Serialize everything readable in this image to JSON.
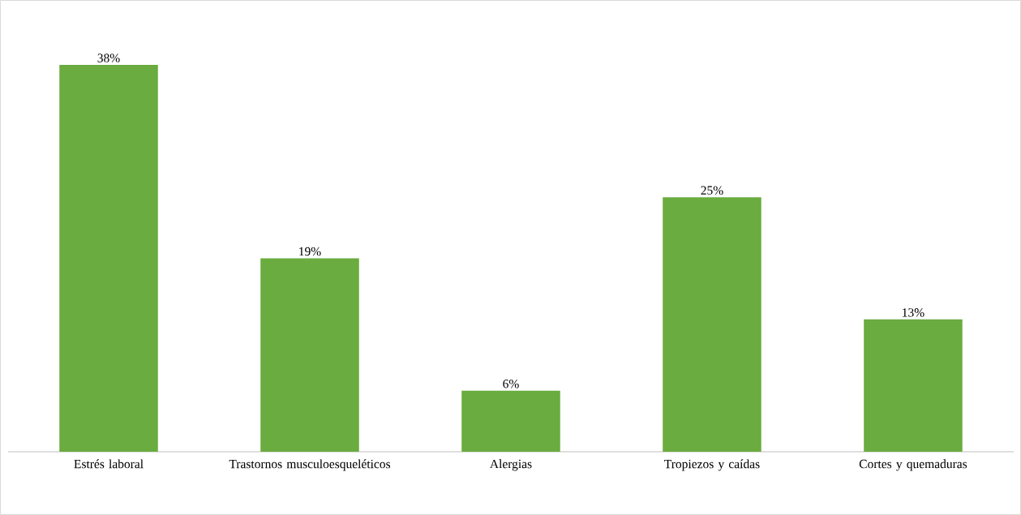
{
  "chart_data": {
    "type": "bar",
    "categories": [
      "Estrés laboral",
      "Trastornos musculoesqueléticos",
      "Alergias",
      "Tropiezos y caídas",
      "Cortes y quemaduras"
    ],
    "values": [
      38,
      19,
      6,
      25,
      13
    ],
    "value_labels": [
      "38%",
      "19%",
      "6%",
      "25%",
      "13%"
    ],
    "color": "#6aac3f"
  }
}
